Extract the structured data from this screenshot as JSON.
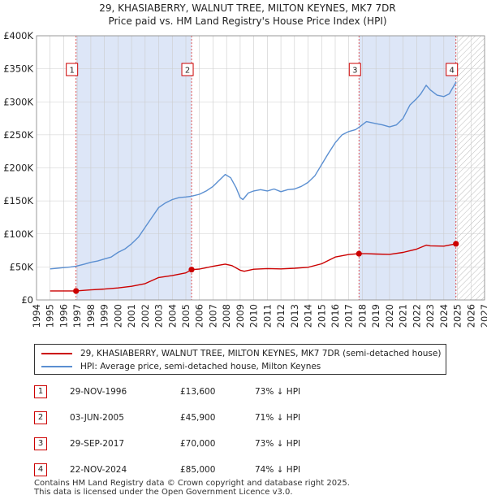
{
  "chart_data": {
    "type": "line",
    "title": "29, KHASIABERRY, WALNUT TREE, MILTON KEYNES, MK7 7DR",
    "subtitle": "Price paid vs. HM Land Registry's House Price Index (HPI)",
    "xlabel": "",
    "ylabel": "",
    "xlim": [
      1994,
      2027
    ],
    "ylim": [
      0,
      400000
    ],
    "x_ticks": [
      "1994",
      "1995",
      "1996",
      "1997",
      "1998",
      "1999",
      "2000",
      "2001",
      "2002",
      "2003",
      "2004",
      "2005",
      "2006",
      "2007",
      "2008",
      "2009",
      "2010",
      "2011",
      "2012",
      "2013",
      "2014",
      "2015",
      "2016",
      "2017",
      "2018",
      "2019",
      "2020",
      "2021",
      "2022",
      "2023",
      "2024",
      "2025",
      "2026",
      "2027"
    ],
    "y_ticks": [
      {
        "value": 0,
        "label": "£0"
      },
      {
        "value": 50000,
        "label": "£50K"
      },
      {
        "value": 100000,
        "label": "£100K"
      },
      {
        "value": 150000,
        "label": "£150K"
      },
      {
        "value": 200000,
        "label": "£200K"
      },
      {
        "value": 250000,
        "label": "£250K"
      },
      {
        "value": 300000,
        "label": "£300K"
      },
      {
        "value": 350000,
        "label": "£350K"
      },
      {
        "value": 400000,
        "label": "£400K"
      }
    ],
    "series": [
      {
        "name": "HPI: Average price, semi-detached house, Milton Keynes",
        "color": "#5b8fd1",
        "x": [
          1995,
          1995.5,
          1996,
          1996.5,
          1996.9,
          1997.5,
          1998,
          1998.5,
          1999,
          1999.5,
          2000,
          2000.5,
          2001,
          2001.5,
          2002,
          2002.5,
          2003,
          2003.5,
          2004,
          2004.5,
          2005,
          2005.4,
          2006,
          2006.5,
          2007,
          2007.5,
          2007.9,
          2008.3,
          2008.7,
          2009.0,
          2009.2,
          2009.6,
          2010,
          2010.5,
          2011,
          2011.5,
          2012,
          2012.5,
          2013,
          2013.5,
          2014,
          2014.5,
          2015,
          2015.5,
          2016,
          2016.5,
          2017,
          2017.5,
          2017.8,
          2018.3,
          2019,
          2019.5,
          2020,
          2020.5,
          2021,
          2021.5,
          2022,
          2022.3,
          2022.7,
          2023,
          2023.5,
          2024,
          2024.4,
          2024.9
        ],
        "values": [
          47000,
          48000,
          49000,
          50000,
          51000,
          54000,
          57000,
          59000,
          62000,
          65000,
          72000,
          77000,
          85000,
          95000,
          110000,
          125000,
          140000,
          147000,
          152000,
          155000,
          156000,
          157000,
          160000,
          165000,
          172000,
          182000,
          190000,
          185000,
          170000,
          155000,
          152000,
          162000,
          165000,
          167000,
          165000,
          168000,
          164000,
          167000,
          168000,
          172000,
          178000,
          188000,
          205000,
          222000,
          238000,
          250000,
          255000,
          258000,
          262000,
          270000,
          267000,
          265000,
          262000,
          265000,
          275000,
          295000,
          305000,
          312000,
          325000,
          318000,
          310000,
          308000,
          312000,
          330000
        ]
      },
      {
        "name": "29, KHASIABERRY, WALNUT TREE, MILTON KEYNES, MK7 7DR (semi-detached house)",
        "color": "#cc0000",
        "x": [
          1995,
          1996.91,
          1997.5,
          1998,
          1999,
          2000,
          2001,
          2002,
          2003,
          2004,
          2005.0,
          2005.42,
          2006,
          2007,
          2007.9,
          2008.4,
          2009.0,
          2009.3,
          2010,
          2011,
          2012,
          2013,
          2014,
          2015,
          2016,
          2017.0,
          2017.75,
          2018.3,
          2019,
          2020,
          2021,
          2022,
          2022.7,
          2023,
          2024,
          2024.89
        ],
        "values": [
          13600,
          13600,
          14500,
          15200,
          16500,
          18200,
          20700,
          24800,
          34000,
          37000,
          41000,
          45900,
          46800,
          51000,
          54300,
          52000,
          45000,
          43500,
          46500,
          47500,
          47000,
          48000,
          49500,
          54800,
          65000,
          68800,
          70000,
          70000,
          69500,
          69000,
          72000,
          77000,
          83000,
          82000,
          81500,
          85000
        ]
      }
    ],
    "sales": [
      {
        "num": "1",
        "x": 1996.91,
        "value": 13600,
        "date": "29-NOV-1996",
        "price": "£13,600",
        "hpi": "73% ↓ HPI"
      },
      {
        "num": "2",
        "x": 2005.42,
        "value": 45900,
        "date": "03-JUN-2005",
        "price": "£45,900",
        "hpi": "71% ↓ HPI"
      },
      {
        "num": "3",
        "x": 2017.75,
        "value": 70000,
        "date": "29-SEP-2017",
        "price": "£70,000",
        "hpi": "73% ↓ HPI"
      },
      {
        "num": "4",
        "x": 2024.89,
        "value": 85000,
        "date": "22-NOV-2024",
        "price": "£85,000",
        "hpi": "74% ↓ HPI"
      }
    ],
    "shaded_spans": [
      [
        1996.91,
        2005.42
      ],
      [
        2017.75,
        2024.89
      ]
    ],
    "future_hatch_from": 2024.89
  },
  "legend": {
    "property_label": "29, KHASIABERRY, WALNUT TREE, MILTON KEYNES, MK7 7DR (semi-detached house)",
    "hpi_label": "HPI: Average price, semi-detached house, Milton Keynes"
  },
  "footer": {
    "line1": "Contains HM Land Registry data © Crown copyright and database right 2025.",
    "line2": "This data is licensed under the Open Government Licence v3.0."
  },
  "colors": {
    "property": "#cc0000",
    "hpi": "#5b8fd1",
    "shade": "#dde6f7",
    "grid": "#cccccc"
  }
}
